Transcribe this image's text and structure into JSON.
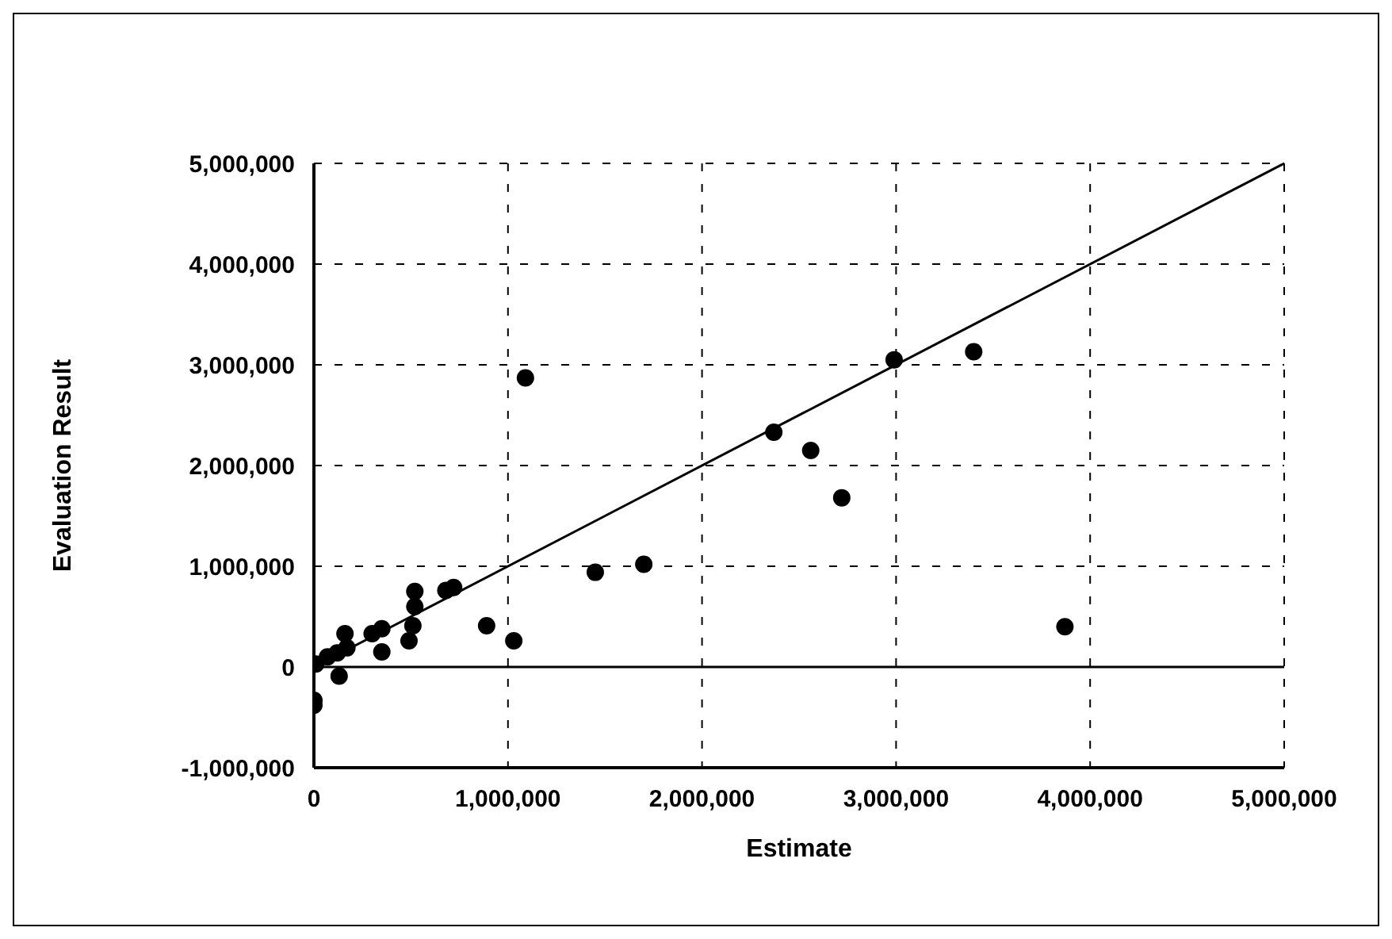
{
  "chart_data": {
    "type": "scatter",
    "xlabel": "Estimate",
    "ylabel": "Evaluation Result",
    "xlim": [
      0,
      5000000
    ],
    "xticks": [
      0,
      {
        "value": 1000000,
        "label": "1,000,000"
      },
      {
        "value": 2000000,
        "label": "2,000,000"
      },
      {
        "value": 3000000,
        "label": "3,000,000"
      },
      {
        "value": 4000000,
        "label": "4,000,000"
      },
      {
        "value": 5000000,
        "label": "5,000,000"
      }
    ],
    "ylim": [
      -1000000,
      5000000
    ],
    "yticks": [
      {
        "value": -1000000,
        "label": "-1,000,000"
      },
      0,
      {
        "value": 1000000,
        "label": "1,000,000"
      },
      {
        "value": 2000000,
        "label": "2,000,000"
      },
      {
        "value": 3000000,
        "label": "3,000,000"
      },
      {
        "value": 4000000,
        "label": "4,000,000"
      },
      {
        "value": 5000000,
        "label": "5,000,000"
      }
    ],
    "grid": true,
    "marker": "circle",
    "ref_lines": [
      {
        "axis": "y",
        "value": 0,
        "color": "#000000"
      }
    ],
    "series": [
      {
        "color": "#000000",
        "x": [
          10000,
          0,
          0,
          70000,
          120000,
          130000,
          160000,
          170000,
          300000,
          350000,
          350000,
          490000,
          510000,
          520000,
          520000,
          680000,
          720000,
          890000,
          1030000,
          1090000,
          1450000,
          1700000,
          2370000,
          2560000,
          2720000,
          2990000,
          3400000,
          3870000
        ],
        "values": [
          30000,
          -330000,
          -380000,
          100000,
          140000,
          -90000,
          330000,
          190000,
          330000,
          380000,
          150000,
          260000,
          410000,
          600000,
          750000,
          760000,
          790000,
          410000,
          260000,
          2870000,
          940000,
          1020000,
          2330000,
          2150000,
          1680000,
          3050000,
          3130000,
          400000
        ]
      },
      {
        "type": "line",
        "color": "#000000",
        "marker": "none",
        "x": [
          0,
          5000000
        ],
        "values": [
          0,
          5000000
        ]
      }
    ]
  }
}
